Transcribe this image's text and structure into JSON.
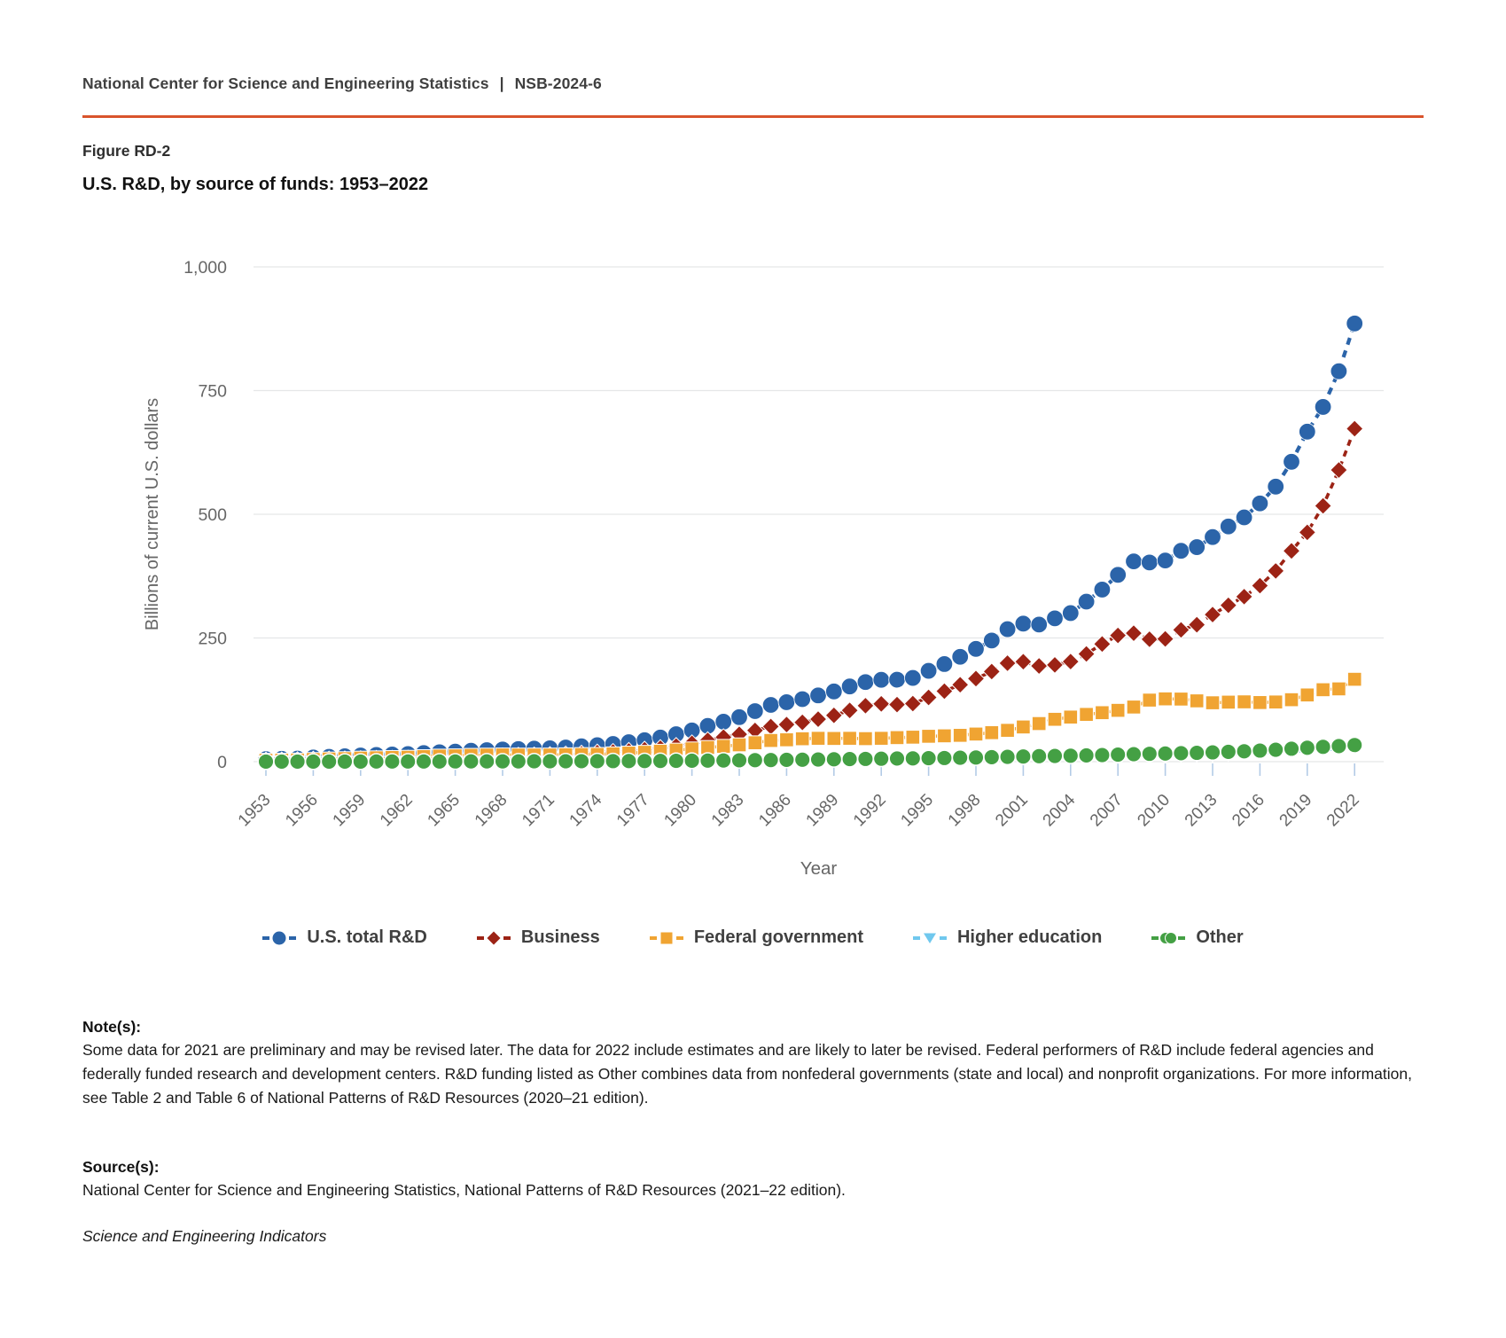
{
  "header": {
    "org": "National Center for Science and Engineering Statistics",
    "separator": "|",
    "report_id": "NSB-2024-6"
  },
  "figure": {
    "label": "Figure RD-2",
    "title": "U.S. R&D, by source of funds: 1953–2022"
  },
  "style": {
    "accent_rule_color": "#d9542c",
    "grid_color": "#e5e6e8",
    "tick_mark_color": "#b3cbe6",
    "axis_text_color": "#666666",
    "legend_text_color": "#404040"
  },
  "chart_data": {
    "type": "line",
    "title": "U.S. R&D, by source of funds: 1953–2022",
    "xlabel": "Year",
    "ylabel": "Billions of current U.S. dollars",
    "ylim": [
      0,
      1000
    ],
    "yticks": [
      0,
      250,
      500,
      750,
      1000
    ],
    "ytick_labels": [
      "0",
      "250",
      "500",
      "750",
      "1,000"
    ],
    "xtick_years": [
      1953,
      1956,
      1959,
      1962,
      1965,
      1968,
      1971,
      1974,
      1977,
      1980,
      1983,
      1986,
      1989,
      1992,
      1995,
      1998,
      2001,
      2004,
      2007,
      2010,
      2013,
      2016,
      2019,
      2022
    ],
    "grid": true,
    "legend_position": "bottom",
    "x": [
      1953,
      1954,
      1955,
      1956,
      1957,
      1958,
      1959,
      1960,
      1961,
      1962,
      1963,
      1964,
      1965,
      1966,
      1967,
      1968,
      1969,
      1970,
      1971,
      1972,
      1973,
      1974,
      1975,
      1976,
      1977,
      1978,
      1979,
      1980,
      1981,
      1982,
      1983,
      1984,
      1985,
      1986,
      1987,
      1988,
      1989,
      1990,
      1991,
      1992,
      1993,
      1994,
      1995,
      1996,
      1997,
      1998,
      1999,
      2000,
      2001,
      2002,
      2003,
      2004,
      2005,
      2006,
      2007,
      2008,
      2009,
      2010,
      2011,
      2012,
      2013,
      2014,
      2015,
      2016,
      2017,
      2018,
      2019,
      2020,
      2021,
      2022
    ],
    "series": [
      {
        "name": "U.S. total R&D",
        "marker": "circle",
        "color": "#2b64a9",
        "values": [
          5.2,
          5.7,
          6.3,
          8.5,
          9.9,
          10.9,
          12.5,
          13.7,
          14.5,
          15.4,
          17.4,
          19.1,
          20.3,
          22.1,
          23.3,
          24.7,
          25.6,
          26.3,
          27.0,
          28.7,
          31.0,
          33.4,
          35.7,
          39.4,
          43.4,
          48.7,
          55.4,
          63.2,
          72.3,
          80.8,
          90.0,
          102.2,
          114.7,
          120.2,
          126.4,
          133.9,
          141.9,
          152.0,
          160.9,
          165.4,
          165.7,
          169.2,
          183.6,
          197.3,
          211.9,
          227.9,
          244.9,
          267.8,
          279.0,
          277.1,
          289.7,
          300.3,
          323.5,
          347.8,
          377.6,
          404.8,
          402.6,
          406.6,
          426.2,
          433.6,
          454.0,
          475.4,
          493.7,
          522.0,
          555.9,
          606.1,
          667.0,
          717.0,
          789.1,
          885.6
        ]
      },
      {
        "name": "Business",
        "marker": "diamond",
        "color": "#9c2315",
        "values": [
          2.2,
          2.6,
          2.9,
          4.0,
          4.4,
          4.6,
          5.1,
          5.6,
          5.9,
          6.2,
          6.9,
          7.6,
          8.2,
          9.0,
          9.8,
          10.8,
          11.9,
          12.5,
          13.2,
          14.4,
          16.2,
          18.4,
          19.6,
          21.8,
          24.2,
          27.3,
          31.6,
          37.1,
          43.3,
          49.4,
          55.3,
          63.2,
          71.0,
          75.0,
          79.4,
          85.9,
          93.7,
          103.6,
          113.1,
          116.8,
          115.4,
          117.4,
          129.8,
          142.4,
          155.4,
          167.9,
          182.1,
          199.0,
          202.0,
          193.4,
          195.5,
          202.3,
          217.8,
          237.8,
          255.1,
          259.7,
          247.4,
          248.1,
          266.3,
          276.8,
          297.3,
          316.1,
          333.5,
          355.8,
          385.5,
          426.0,
          463.5,
          517.0,
          589.5,
          673.0
        ]
      },
      {
        "name": "Federal government",
        "marker": "square",
        "color": "#f0a432",
        "values": [
          2.8,
          3.1,
          3.3,
          4.4,
          5.4,
          6.1,
          7.2,
          7.8,
          8.4,
          8.9,
          10.2,
          11.3,
          11.8,
          12.8,
          13.3,
          13.6,
          13.4,
          13.4,
          13.4,
          14.0,
          14.4,
          14.6,
          15.8,
          17.3,
          18.9,
          21.1,
          23.4,
          25.8,
          28.7,
          31.0,
          34.0,
          38.2,
          42.8,
          44.2,
          46.3,
          47.2,
          46.9,
          47.2,
          46.5,
          47.2,
          48.6,
          49.5,
          51.3,
          52.2,
          53.2,
          55.8,
          58.6,
          63.3,
          70.1,
          77.0,
          85.6,
          90.1,
          95.5,
          99.0,
          103.7,
          110.4,
          124.4,
          126.9,
          126.5,
          122.9,
          119.0,
          120.3,
          120.9,
          119.5,
          120.6,
          125.2,
          134.8,
          145.4,
          147.1,
          166.5
        ]
      },
      {
        "name": "Higher education",
        "marker": "triangle-down",
        "color": "#70c8ee",
        "values": [
          0.07,
          0.08,
          0.09,
          0.1,
          0.11,
          0.13,
          0.15,
          0.16,
          0.18,
          0.2,
          0.22,
          0.25,
          0.27,
          0.3,
          0.33,
          0.36,
          0.4,
          0.46,
          0.5,
          0.54,
          0.59,
          0.65,
          0.71,
          0.78,
          0.86,
          0.96,
          1.09,
          1.25,
          1.42,
          1.61,
          1.8,
          2.0,
          2.2,
          2.5,
          2.8,
          3.1,
          3.5,
          3.8,
          4.1,
          4.4,
          4.7,
          5.0,
          5.3,
          5.6,
          5.9,
          6.3,
          6.7,
          7.3,
          8.0,
          8.7,
          9.2,
          9.7,
          10.0,
          10.5,
          11.0,
          11.8,
          12.1,
          12.3,
          12.6,
          13.2,
          13.8,
          14.9,
          16.4,
          17.5,
          18.7,
          20.0,
          21.8,
          23.6,
          25.2,
          27.4
        ]
      },
      {
        "name": "Other",
        "marker": "circle",
        "color": "#44a044",
        "values": [
          0.11,
          0.12,
          0.13,
          0.14,
          0.16,
          0.18,
          0.2,
          0.25,
          0.28,
          0.31,
          0.35,
          0.39,
          0.43,
          0.48,
          0.53,
          0.58,
          0.64,
          0.7,
          0.76,
          0.83,
          0.91,
          1.0,
          1.1,
          1.2,
          1.3,
          1.5,
          1.7,
          1.9,
          2.1,
          2.4,
          2.7,
          3.0,
          3.3,
          3.7,
          4.0,
          4.4,
          4.8,
          5.2,
          5.6,
          6.0,
          6.3,
          6.6,
          7.0,
          7.4,
          7.9,
          8.4,
          9.0,
          9.7,
          10.4,
          11.0,
          11.6,
          12.0,
          12.6,
          13.3,
          14.2,
          15.2,
          15.9,
          16.4,
          17.2,
          17.9,
          18.8,
          19.9,
          21.0,
          22.4,
          24.1,
          26.2,
          28.2,
          30.0,
          31.4,
          33.6
        ]
      }
    ]
  },
  "notes": {
    "heading": "Note(s):",
    "text": "Some data for 2021 are preliminary and may be revised later. The data for 2022 include estimates and are likely to later be revised. Federal performers of R&D include federal agencies and federally funded research and development centers. R&D funding listed as Other combines data from nonfederal governments (state and local) and nonprofit organizations. For more information, see Table 2 and Table 6 of National Patterns of R&D Resources (2020–21 edition)."
  },
  "source": {
    "heading": "Source(s):",
    "text": "National Center for Science and Engineering Statistics, National Patterns of R&D Resources (2021–22 edition)."
  },
  "footer": {
    "text": "Science and Engineering Indicators"
  }
}
